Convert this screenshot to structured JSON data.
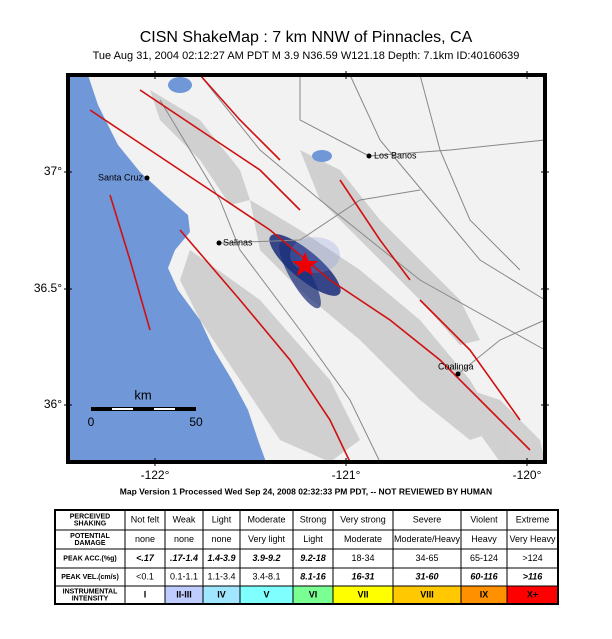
{
  "header": {
    "title": "CISN ShakeMap :  7 km NNW of Pinnacles, CA",
    "subtitle": "Tue Aug 31, 2004 02:12:27 AM PDT   M 3.9   N36.59 W121.18   Depth: 7.1km   ID:40160639"
  },
  "map": {
    "cities": [
      "Los Banos",
      "Santa Cruz",
      "Salinas",
      "Coalinga"
    ],
    "lat_labels": [
      "37°",
      "36.5°",
      "36°"
    ],
    "lon_labels": [
      "-122°",
      "-121°",
      "-120°"
    ],
    "scale": {
      "unit": "km",
      "labels": [
        "0",
        "50"
      ]
    }
  },
  "footer": "Map Version 1 Processed Wed Sep 24, 2008 02:32:33 PM PDT, -- NOT REVIEWED BY HUMAN",
  "legend": {
    "rows": [
      {
        "label": [
          "PERCEIVED",
          "SHAKING"
        ],
        "cells": [
          "Not felt",
          "Weak",
          "Light",
          "Moderate",
          "Strong",
          "Very strong",
          "Severe",
          "Violent",
          "Extreme"
        ]
      },
      {
        "label": [
          "POTENTIAL",
          "DAMAGE"
        ],
        "cells": [
          "none",
          "none",
          "none",
          "Very light",
          "Light",
          "Moderate",
          "Moderate/Heavy",
          "Heavy",
          "Very Heavy"
        ]
      },
      {
        "label": [
          "PEAK ACC.(%g)"
        ],
        "cells": [
          "<.17",
          ".17-1.4",
          "1.4-3.9",
          "3.9-9.2",
          "9.2-18",
          "18-34",
          "34-65",
          "65-124",
          ">124"
        ]
      },
      {
        "label": [
          "PEAK VEL.(cm/s)"
        ],
        "cells": [
          "<0.1",
          "0.1-1.1",
          "1.1-3.4",
          "3.4-8.1",
          "8.1-16",
          "16-31",
          "31-60",
          "60-116",
          ">116"
        ]
      },
      {
        "label": [
          "INSTRUMENTAL",
          "INTENSITY"
        ],
        "cells": [
          "I",
          "II-III",
          "IV",
          "V",
          "VI",
          "VII",
          "VIII",
          "IX",
          "X+"
        ]
      }
    ]
  }
}
